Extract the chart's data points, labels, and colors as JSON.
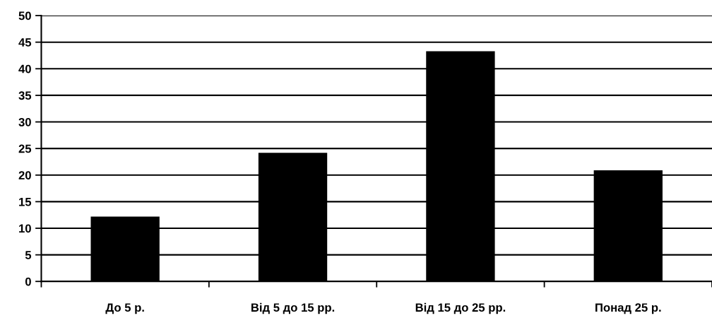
{
  "chart_data": {
    "type": "bar",
    "categories": [
      "До 5 р.",
      "Від 5 до 15 рр.",
      "Від 15 до 25 рр.",
      "Понад 25 р."
    ],
    "values": [
      12.2,
      24.2,
      43.3,
      20.9
    ],
    "color": "#000000",
    "ylim": [
      0,
      50
    ],
    "yticks": [
      0,
      5,
      10,
      15,
      20,
      25,
      30,
      35,
      40,
      45,
      50
    ],
    "grid": "y"
  }
}
